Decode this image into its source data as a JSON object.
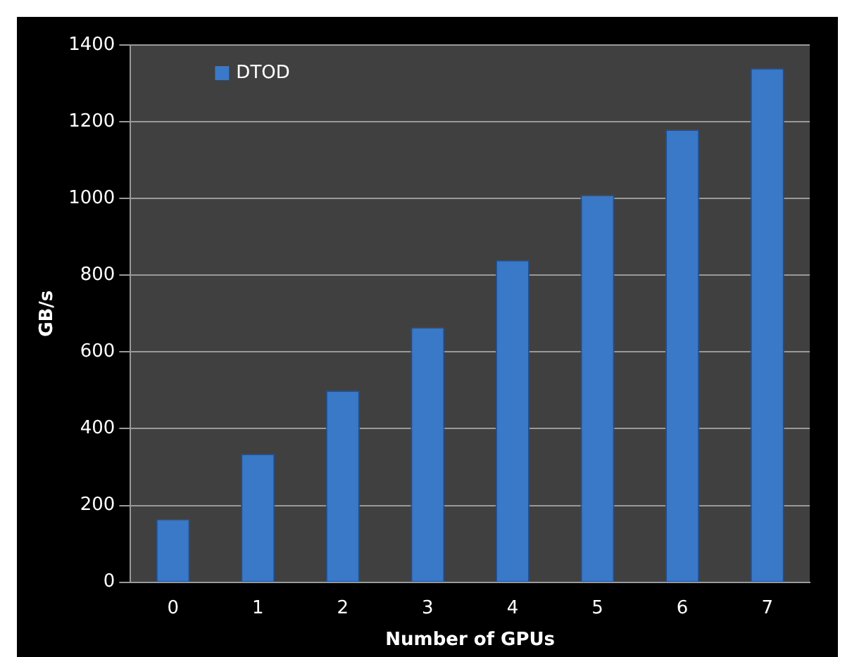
{
  "chart_data": {
    "type": "bar",
    "xlabel": "Number of GPUs",
    "ylabel": "GB/s",
    "categories": [
      "0",
      "1",
      "2",
      "3",
      "4",
      "5",
      "6",
      "7"
    ],
    "series": [
      {
        "name": "DTOD",
        "color": "#3a78c8",
        "values": [
          165,
          335,
          500,
          665,
          840,
          1010,
          1180,
          1340
        ]
      }
    ],
    "ylim": [
      0,
      1400
    ],
    "yticks": [
      0,
      200,
      400,
      600,
      800,
      1000,
      1200,
      1400
    ],
    "grid": "y",
    "legend": "top left"
  }
}
